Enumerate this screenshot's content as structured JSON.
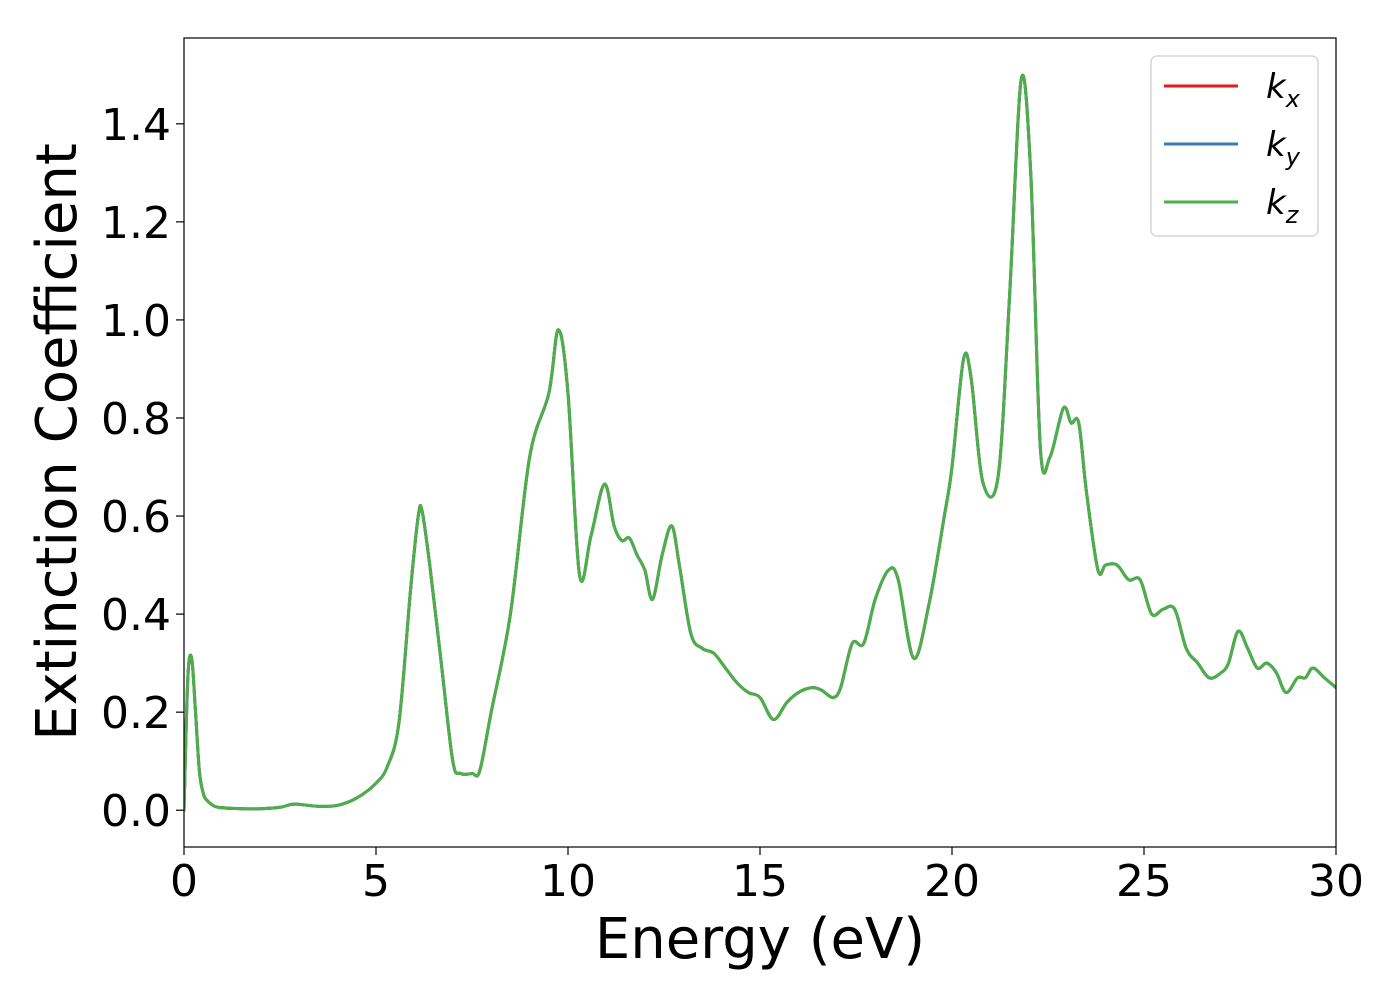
{
  "chart_data": {
    "type": "line",
    "title": "",
    "xlabel": "Energy (eV)",
    "ylabel": "Extinction Coefficient",
    "xlim": [
      0,
      30
    ],
    "ylim": [
      -0.075,
      1.575
    ],
    "xticks": [
      0,
      5,
      10,
      15,
      20,
      25,
      30
    ],
    "xtick_labels": [
      "0",
      "5",
      "10",
      "15",
      "20",
      "25",
      "30"
    ],
    "yticks": [
      0.0,
      0.2,
      0.4,
      0.6,
      0.8,
      1.0,
      1.2,
      1.4
    ],
    "ytick_labels": [
      "0.0",
      "0.2",
      "0.4",
      "0.6",
      "0.8",
      "1.0",
      "1.2",
      "1.4"
    ],
    "grid": false,
    "legend_position": "top-right",
    "x": [
      0,
      0.1,
      0.2,
      0.3,
      0.4,
      0.5,
      0.6,
      0.8,
      1.0,
      1.5,
      2.0,
      2.5,
      2.8,
      3.0,
      3.5,
      4.0,
      4.5,
      5.0,
      5.3,
      5.6,
      5.9,
      6.1,
      6.2,
      6.4,
      6.7,
      7.0,
      7.2,
      7.5,
      7.7,
      8.0,
      8.5,
      9.0,
      9.5,
      9.75,
      10.0,
      10.3,
      10.6,
      10.95,
      11.2,
      11.4,
      11.6,
      11.8,
      12.0,
      12.2,
      12.45,
      12.7,
      12.9,
      13.2,
      13.5,
      13.8,
      14.1,
      14.4,
      14.7,
      15.0,
      15.35,
      15.7,
      16.0,
      16.35,
      16.6,
      16.9,
      17.1,
      17.4,
      17.7,
      18.0,
      18.35,
      18.6,
      19.0,
      19.4,
      19.8,
      20.0,
      20.3,
      20.5,
      20.8,
      21.2,
      21.5,
      21.8,
      22.05,
      22.3,
      22.55,
      22.9,
      23.1,
      23.3,
      23.5,
      23.8,
      24.0,
      24.3,
      24.6,
      24.9,
      25.2,
      25.5,
      25.8,
      26.1,
      26.4,
      26.7,
      27.0,
      27.2,
      27.45,
      27.7,
      27.95,
      28.2,
      28.45,
      28.7,
      29.0,
      29.2,
      29.4,
      29.7,
      30.0
    ],
    "series": [
      {
        "name": "k_x",
        "values": [
          0.0,
          0.27,
          0.31,
          0.2,
          0.08,
          0.035,
          0.02,
          0.008,
          0.005,
          0.003,
          0.003,
          0.006,
          0.012,
          0.012,
          0.008,
          0.01,
          0.025,
          0.055,
          0.09,
          0.18,
          0.45,
          0.6,
          0.61,
          0.5,
          0.3,
          0.1,
          0.075,
          0.075,
          0.08,
          0.2,
          0.4,
          0.72,
          0.85,
          0.98,
          0.85,
          0.48,
          0.56,
          0.665,
          0.58,
          0.55,
          0.555,
          0.52,
          0.49,
          0.43,
          0.52,
          0.58,
          0.5,
          0.36,
          0.33,
          0.32,
          0.29,
          0.26,
          0.24,
          0.23,
          0.185,
          0.22,
          0.24,
          0.25,
          0.245,
          0.23,
          0.25,
          0.34,
          0.34,
          0.43,
          0.49,
          0.47,
          0.31,
          0.42,
          0.6,
          0.7,
          0.92,
          0.88,
          0.67,
          0.68,
          1.05,
          1.49,
          1.3,
          0.74,
          0.72,
          0.82,
          0.79,
          0.79,
          0.65,
          0.49,
          0.5,
          0.5,
          0.47,
          0.47,
          0.4,
          0.41,
          0.41,
          0.33,
          0.3,
          0.27,
          0.28,
          0.3,
          0.365,
          0.33,
          0.29,
          0.3,
          0.28,
          0.24,
          0.27,
          0.27,
          0.29,
          0.27,
          0.25
        ]
      },
      {
        "name": "k_y",
        "values": [
          0.0,
          0.27,
          0.31,
          0.2,
          0.08,
          0.035,
          0.02,
          0.008,
          0.005,
          0.003,
          0.003,
          0.006,
          0.012,
          0.012,
          0.008,
          0.01,
          0.025,
          0.055,
          0.09,
          0.18,
          0.45,
          0.6,
          0.61,
          0.5,
          0.3,
          0.1,
          0.075,
          0.075,
          0.08,
          0.2,
          0.4,
          0.72,
          0.85,
          0.98,
          0.85,
          0.48,
          0.56,
          0.665,
          0.58,
          0.55,
          0.555,
          0.52,
          0.49,
          0.43,
          0.52,
          0.58,
          0.5,
          0.36,
          0.33,
          0.32,
          0.29,
          0.26,
          0.24,
          0.23,
          0.185,
          0.22,
          0.24,
          0.25,
          0.245,
          0.23,
          0.25,
          0.34,
          0.34,
          0.43,
          0.49,
          0.47,
          0.31,
          0.42,
          0.6,
          0.7,
          0.92,
          0.88,
          0.67,
          0.68,
          1.05,
          1.49,
          1.3,
          0.74,
          0.72,
          0.82,
          0.79,
          0.79,
          0.65,
          0.49,
          0.5,
          0.5,
          0.47,
          0.47,
          0.4,
          0.41,
          0.41,
          0.33,
          0.3,
          0.27,
          0.28,
          0.3,
          0.365,
          0.33,
          0.29,
          0.3,
          0.28,
          0.24,
          0.27,
          0.27,
          0.29,
          0.27,
          0.25
        ]
      },
      {
        "name": "k_z",
        "values": [
          0.0,
          0.27,
          0.31,
          0.2,
          0.08,
          0.035,
          0.02,
          0.008,
          0.005,
          0.003,
          0.003,
          0.006,
          0.012,
          0.012,
          0.008,
          0.01,
          0.025,
          0.055,
          0.09,
          0.18,
          0.45,
          0.6,
          0.61,
          0.5,
          0.3,
          0.1,
          0.075,
          0.075,
          0.08,
          0.2,
          0.4,
          0.72,
          0.85,
          0.98,
          0.85,
          0.48,
          0.56,
          0.665,
          0.58,
          0.55,
          0.555,
          0.52,
          0.49,
          0.43,
          0.52,
          0.58,
          0.5,
          0.36,
          0.33,
          0.32,
          0.29,
          0.26,
          0.24,
          0.23,
          0.185,
          0.22,
          0.24,
          0.25,
          0.245,
          0.23,
          0.25,
          0.34,
          0.34,
          0.43,
          0.49,
          0.47,
          0.31,
          0.42,
          0.6,
          0.7,
          0.92,
          0.88,
          0.67,
          0.68,
          1.05,
          1.49,
          1.3,
          0.74,
          0.72,
          0.82,
          0.79,
          0.79,
          0.65,
          0.49,
          0.5,
          0.5,
          0.47,
          0.47,
          0.4,
          0.41,
          0.41,
          0.33,
          0.3,
          0.27,
          0.28,
          0.3,
          0.365,
          0.33,
          0.29,
          0.3,
          0.28,
          0.24,
          0.27,
          0.27,
          0.29,
          0.27,
          0.25
        ]
      }
    ],
    "legend": [
      {
        "base": "k",
        "sub": "x",
        "color": "#e41a1c"
      },
      {
        "base": "k",
        "sub": "y",
        "color": "#377eb8"
      },
      {
        "base": "k",
        "sub": "z",
        "color": "#4daf4a"
      }
    ]
  }
}
